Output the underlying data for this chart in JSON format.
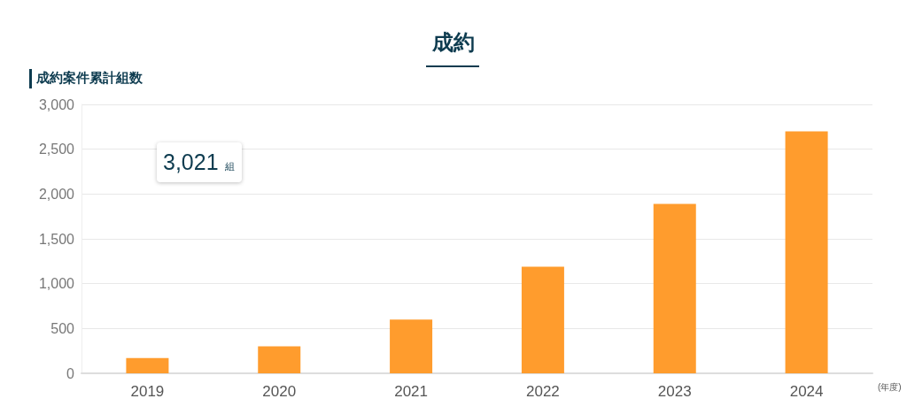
{
  "chart_data": {
    "type": "bar",
    "title": "成約",
    "ylabel": "成約案件累計組数",
    "xlabel": "(年度)",
    "annotations": [
      "3,021 組"
    ],
    "categories": [
      "2019",
      "2020",
      "2021",
      "2022",
      "2023",
      "2024"
    ],
    "values": [
      170,
      300,
      600,
      1190,
      1890,
      2700
    ],
    "color": "#ff9c2d",
    "ylim": [
      0,
      3000
    ],
    "yticks": [
      0,
      500,
      {
        "value": 1000,
        "label": "1,000"
      },
      {
        "value": 1500,
        "label": "1,500"
      },
      {
        "value": 2000,
        "label": "2,000"
      },
      {
        "value": 2500,
        "label": "2,500"
      },
      {
        "value": 3000,
        "label": "3,000"
      }
    ],
    "grid": "y"
  }
}
